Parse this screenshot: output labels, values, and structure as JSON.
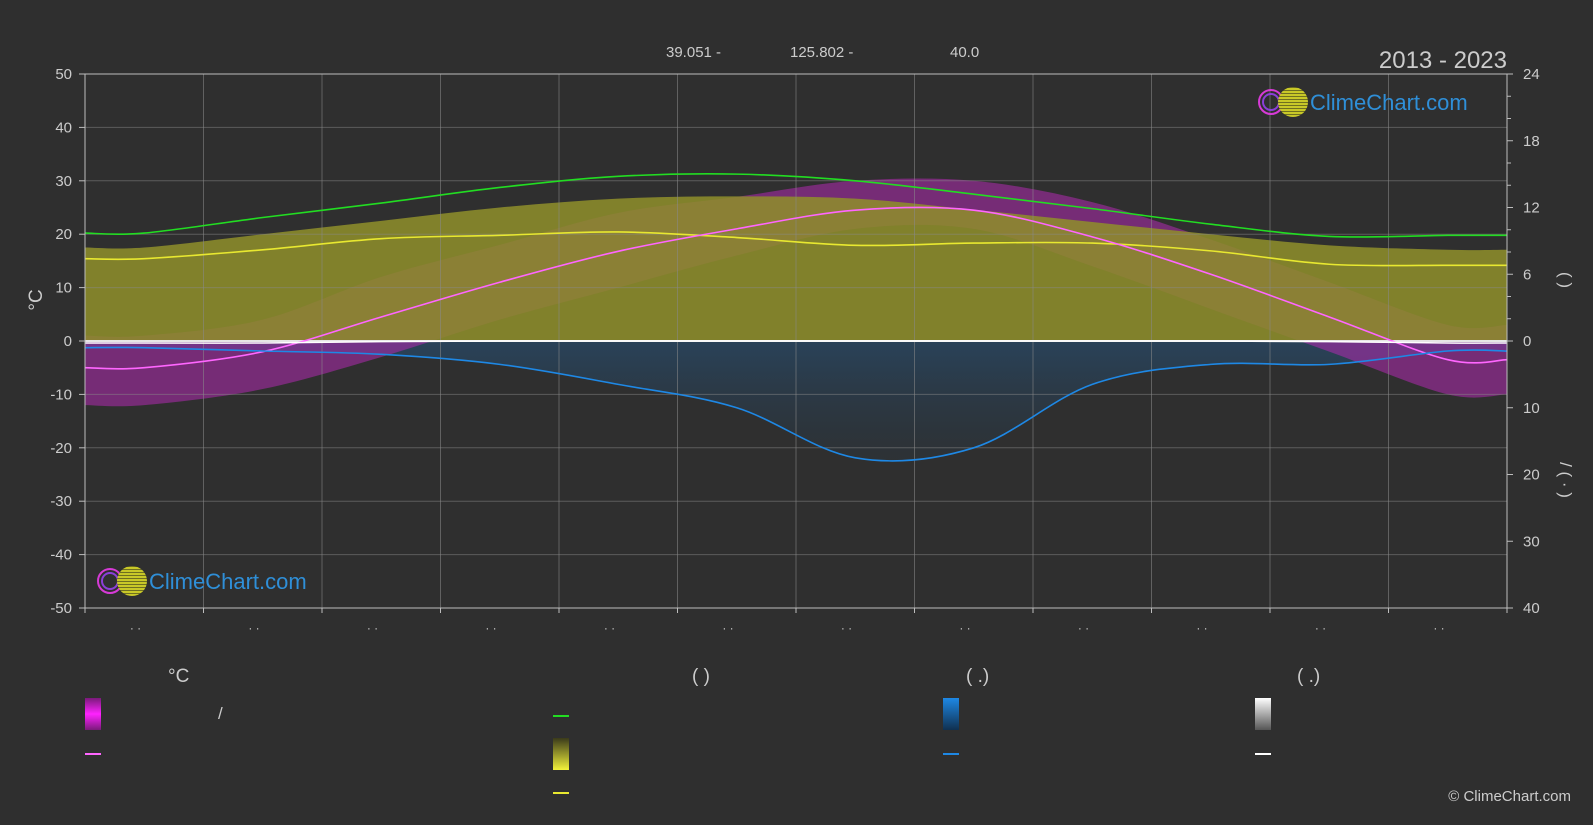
{
  "header": {
    "coord_lat": "39.051 -",
    "coord_lon": "125.802 -",
    "elevation": "40.0",
    "years": "2013 - 2023"
  },
  "brand": {
    "name": "ClimeChart.com",
    "copyright": "© ClimeChart.com"
  },
  "axes": {
    "left_unit": "°C",
    "left_ticks": [
      50,
      40,
      30,
      20,
      10,
      0,
      -10,
      -20,
      -30,
      -40,
      -50
    ],
    "right_top_ticks": [
      24,
      18,
      12,
      6,
      0
    ],
    "right_bottom_ticks": [
      10,
      20,
      30,
      40
    ],
    "right_top_label": "(     )",
    "right_bottom_label": "/     (  ·  )",
    "month_ticks": [
      "· ·",
      "· ·",
      "· ·",
      "· ·",
      "· ·",
      "· ·",
      "· ·",
      "· ·",
      "· ·",
      "· ·",
      "· ·",
      "· ·"
    ]
  },
  "legend": {
    "col1_head": "°C",
    "col1_slash": "/",
    "col2_head": "(          )",
    "col3_head": "(    .)",
    "col4_head": "(    .)",
    "colors": {
      "temp_range": "#e020e0",
      "temp_mean": "#ff66ff",
      "daylight": "#22dd22",
      "sunshine": "#e8e830",
      "sunshine_mean": "#e8e830",
      "precip": "#1e88e5",
      "precip_mean": "#1e88e5",
      "snow": "#e0e0e0",
      "snow_mean": "#ffffff"
    }
  },
  "chart_data": {
    "type": "line",
    "x_categories": [
      "1",
      "2",
      "3",
      "4",
      "5",
      "6",
      "7",
      "8",
      "9",
      "10",
      "11",
      "12"
    ],
    "ylim_temperature": [
      -50,
      50
    ],
    "ylim_hours": [
      0,
      24
    ],
    "ylim_precip_mm": [
      0,
      40
    ],
    "grid": true,
    "series": [
      {
        "key": "daylight",
        "axis": "hours",
        "color": "#22dd22",
        "values": [
          9.7,
          11.1,
          12.4,
          13.8,
          14.8,
          15.0,
          14.4,
          13.2,
          11.9,
          10.5,
          9.4,
          9.5
        ]
      },
      {
        "key": "sunshine_mean",
        "axis": "hours",
        "color": "#e8e830",
        "values": [
          7.4,
          8.2,
          9.2,
          9.5,
          9.8,
          9.3,
          8.6,
          8.8,
          8.8,
          8.1,
          6.9,
          6.8
        ]
      },
      {
        "key": "temperature_mean",
        "axis": "temperature",
        "color": "#ff66ff",
        "values": [
          -5.0,
          -2.0,
          4.5,
          11.0,
          16.8,
          21.0,
          24.5,
          24.5,
          19.5,
          12.5,
          4.5,
          -3.5
        ]
      },
      {
        "key": "precipitation_mean",
        "axis": "precip",
        "color": "#1e88e5",
        "values": [
          1.0,
          1.5,
          2.0,
          3.5,
          6.5,
          10.0,
          17.5,
          16.0,
          6.5,
          3.5,
          3.5,
          1.5
        ]
      },
      {
        "key": "snowfall_mean",
        "axis": "precip",
        "color": "#ffffff",
        "values": [
          0.3,
          0.3,
          0.1,
          0,
          0,
          0,
          0,
          0,
          0,
          0,
          0.1,
          0.3
        ]
      }
    ],
    "bands": [
      {
        "key": "temperature_range",
        "axis": "temperature",
        "color": "#e020e0",
        "upper": [
          1,
          4,
          12,
          18,
          24,
          27,
          30,
          30,
          26,
          19,
          11,
          3
        ],
        "lower": [
          -12,
          -9,
          -3,
          4,
          10,
          16,
          21,
          21,
          14,
          6,
          -2,
          -10
        ]
      },
      {
        "key": "sunshine",
        "axis": "hours",
        "color": "#a8a832",
        "upper": [
          8.4,
          9.6,
          10.8,
          12.0,
          12.8,
          13.0,
          12.8,
          11.8,
          10.7,
          9.6,
          8.6,
          8.2
        ],
        "lower": [
          0,
          0,
          0,
          0,
          0,
          0,
          0,
          0,
          0,
          0,
          0,
          0
        ]
      }
    ]
  }
}
